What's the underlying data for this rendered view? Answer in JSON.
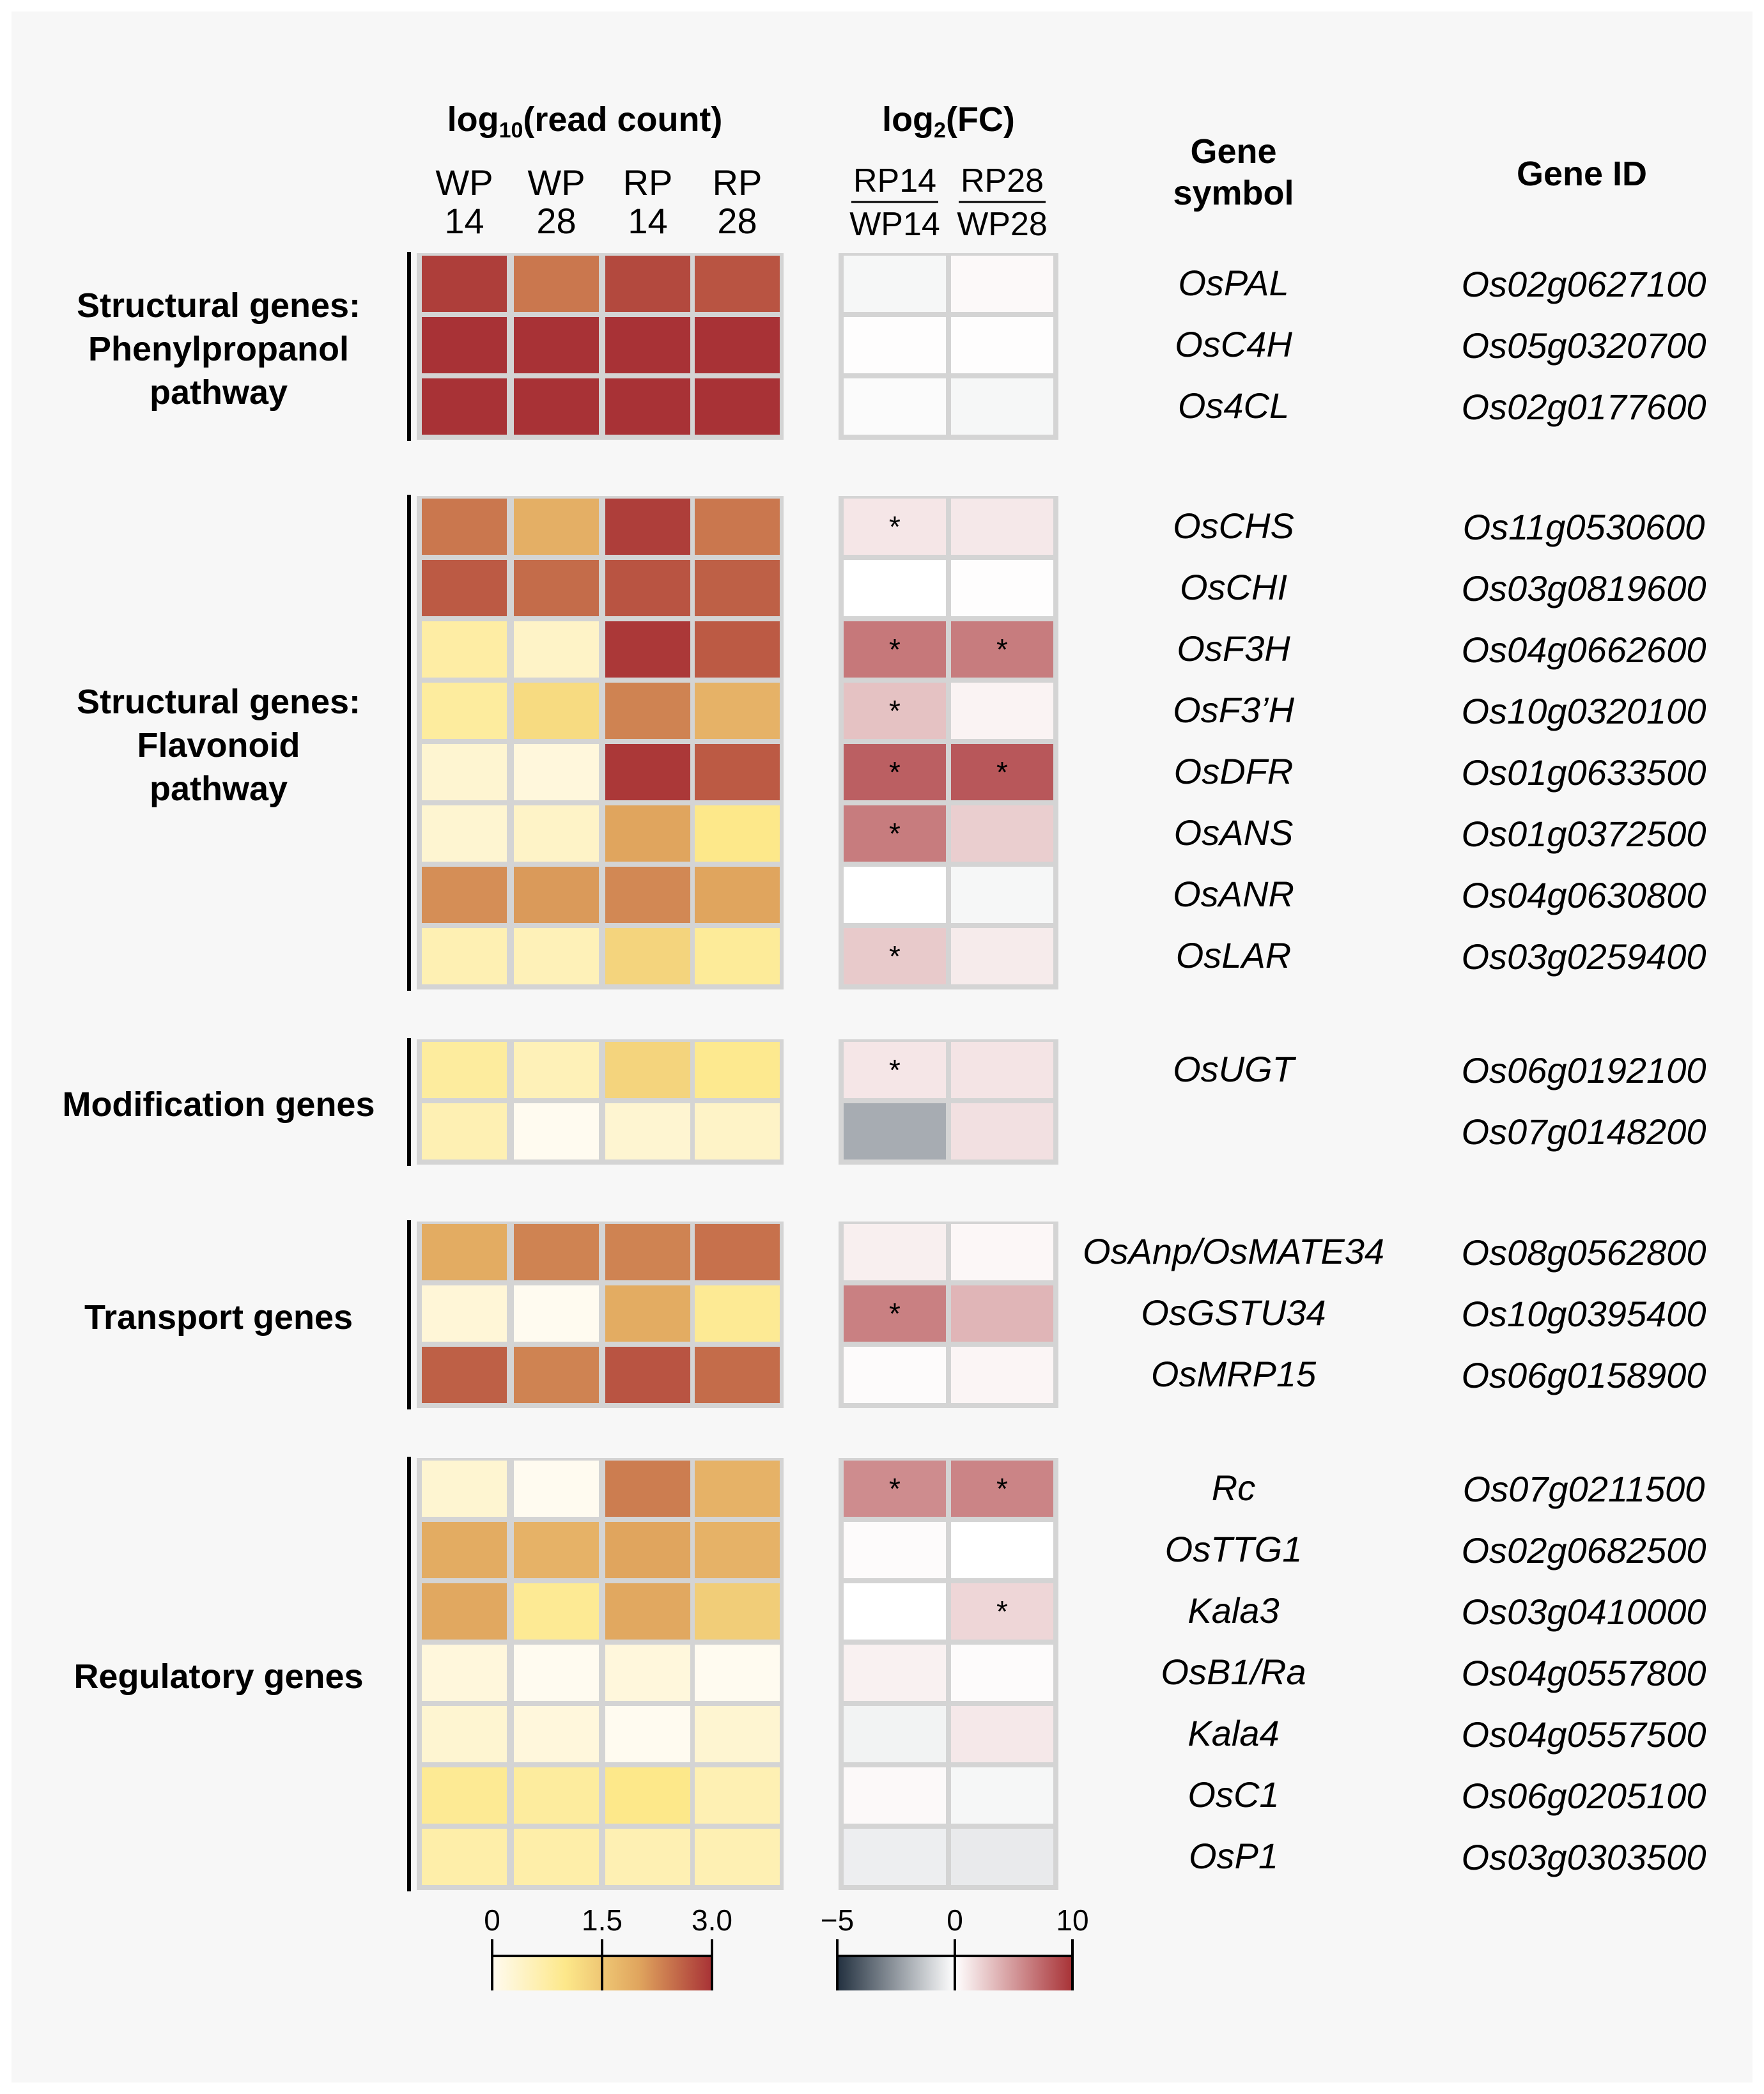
{
  "chart_data": {
    "type": "heatmap",
    "panels": [
      {
        "title_main": "log",
        "title_sub": "10",
        "title_rest": "(read count)",
        "columns": [
          {
            "line1": "WP",
            "line2": "14"
          },
          {
            "line1": "WP",
            "line2": "28"
          },
          {
            "line1": "RP",
            "line2": "14"
          },
          {
            "line1": "RP",
            "line2": "28"
          }
        ],
        "scale": {
          "min": 0,
          "max": 3.0,
          "colors": [
            "#fffbf0",
            "#fde88a",
            "#e0a55e",
            "#a83236"
          ],
          "ticks": [
            "0",
            "1.5",
            "3.0"
          ]
        }
      },
      {
        "title_main": "log",
        "title_sub": "2",
        "title_rest": "(FC)",
        "columns": [
          {
            "num": "RP14",
            "den": "WP14"
          },
          {
            "num": "RP28",
            "den": "WP28"
          }
        ],
        "scale": {
          "min": -5,
          "max": 10,
          "colors": [
            "#22303f",
            "#ffffff",
            "#a83236"
          ],
          "ticks": [
            "−5",
            "0",
            "10"
          ]
        }
      }
    ],
    "header_gene_symbol": [
      "Gene",
      "symbol"
    ],
    "header_gene_id": "Gene ID",
    "groups": [
      {
        "label": [
          "Structural genes:",
          "Phenylpropanol",
          "pathway"
        ],
        "rows": [
          {
            "symbol": "OsPAL",
            "id": "Os02g0627100",
            "read": [
              2.9,
              2.4,
              2.8,
              2.7
            ],
            "fc": [
              -0.2,
              0.3
            ],
            "sig": [
              false,
              false
            ]
          },
          {
            "symbol": "OsC4H",
            "id": "Os05g0320700",
            "read": [
              3.0,
              3.0,
              3.0,
              3.0
            ],
            "fc": [
              0.1,
              0.1
            ],
            "sig": [
              false,
              false
            ]
          },
          {
            "symbol": "Os4CL",
            "id": "Os02g0177600",
            "read": [
              3.0,
              3.0,
              3.0,
              3.0
            ],
            "fc": [
              -0.1,
              -0.2
            ],
            "sig": [
              false,
              false
            ]
          }
        ]
      },
      {
        "label": [
          "Structural genes:",
          "Flavonoid",
          "pathway"
        ],
        "rows": [
          {
            "symbol": "OsCHS",
            "id": "Os11g0530600",
            "read": [
              2.4,
              1.85,
              2.9,
              2.4
            ],
            "fc": [
              1.2,
              1.1
            ],
            "sig": [
              true,
              false
            ]
          },
          {
            "symbol": "OsCHI",
            "id": "Os03g0819600",
            "read": [
              2.65,
              2.5,
              2.7,
              2.6
            ],
            "fc": [
              0.0,
              0.1
            ],
            "sig": [
              false,
              false
            ]
          },
          {
            "symbol": "OsF3H",
            "id": "Os04g0662600",
            "read": [
              0.75,
              0.4,
              2.95,
              2.65
            ],
            "fc": [
              6.6,
              6.4
            ],
            "sig": [
              true,
              true
            ]
          },
          {
            "symbol": "OsF3’H",
            "id": "Os10g0320100",
            "read": [
              0.8,
              1.2,
              2.3,
              1.8
            ],
            "fc": [
              3.0,
              0.6
            ],
            "sig": [
              true,
              false
            ]
          },
          {
            "symbol": "OsDFR",
            "id": "Os01g0633500",
            "read": [
              0.3,
              0.2,
              2.95,
              2.65
            ],
            "fc": [
              7.8,
              8.2
            ],
            "sig": [
              true,
              true
            ]
          },
          {
            "symbol": "OsANS",
            "id": "Os01g0372500",
            "read": [
              0.3,
              0.4,
              2.0,
              1.0
            ],
            "fc": [
              6.4,
              2.4
            ],
            "sig": [
              true,
              false
            ]
          },
          {
            "symbol": "OsANR",
            "id": "Os04g0630800",
            "read": [
              2.2,
              2.1,
              2.25,
              2.0
            ],
            "fc": [
              0.0,
              -0.2
            ],
            "sig": [
              false,
              false
            ]
          },
          {
            "symbol": "OsLAR",
            "id": "Os03g0259400",
            "read": [
              0.6,
              0.55,
              1.3,
              0.85
            ],
            "fc": [
              2.6,
              1.0
            ],
            "sig": [
              true,
              false
            ]
          }
        ]
      },
      {
        "label": [
          "Modification genes"
        ],
        "rows": [
          {
            "symbol": "OsUGT",
            "id": "Os06g0192100",
            "read": [
              0.8,
              0.55,
              1.3,
              0.95
            ],
            "fc": [
              1.2,
              1.3
            ],
            "sig": [
              true,
              false
            ]
          },
          {
            "symbol": "",
            "id": "Os07g0148200",
            "read": [
              0.6,
              0.0,
              0.3,
              0.4
            ],
            "fc": [
              -2.0,
              1.5
            ],
            "sig": [
              false,
              false
            ]
          }
        ]
      },
      {
        "label": [
          "Transport genes"
        ],
        "rows": [
          {
            "symbol": "OsAnp/OsMATE34",
            "id": "Os08g0562800",
            "read": [
              1.9,
              2.3,
              2.3,
              2.45
            ],
            "fc": [
              0.8,
              0.4
            ],
            "sig": [
              false,
              false
            ]
          },
          {
            "symbol": "OsGSTU34",
            "id": "Os10g0395400",
            "read": [
              0.25,
              0.0,
              1.9,
              0.9
            ],
            "fc": [
              6.2,
              3.6
            ],
            "sig": [
              true,
              false
            ]
          },
          {
            "symbol": "OsMRP15",
            "id": "Os06g0158900",
            "read": [
              2.6,
              2.3,
              2.7,
              2.5
            ],
            "fc": [
              0.2,
              0.5
            ],
            "sig": [
              false,
              false
            ]
          }
        ]
      },
      {
        "label": [
          "Regulatory genes"
        ],
        "rows": [
          {
            "symbol": "Rc",
            "id": "Os07g0211500",
            "read": [
              0.3,
              0.0,
              2.35,
              1.8
            ],
            "fc": [
              5.6,
              6.0
            ],
            "sig": [
              true,
              true
            ]
          },
          {
            "symbol": "OsTTG1",
            "id": "Os02g0682500",
            "read": [
              1.9,
              1.8,
              2.0,
              1.8
            ],
            "fc": [
              0.2,
              0.0
            ],
            "sig": [
              false,
              false
            ]
          },
          {
            "symbol": "Kala3",
            "id": "Os03g0410000",
            "read": [
              1.95,
              0.9,
              1.95,
              1.4
            ],
            "fc": [
              0.0,
              2.0
            ],
            "sig": [
              false,
              true
            ]
          },
          {
            "symbol": "OsB1/Ra",
            "id": "Os04g0557800",
            "read": [
              0.2,
              0.0,
              0.2,
              0.0
            ],
            "fc": [
              0.7,
              0.2
            ],
            "sig": [
              false,
              false
            ]
          },
          {
            "symbol": "Kala4",
            "id": "Os04g0557500",
            "read": [
              0.3,
              0.2,
              0.0,
              0.3
            ],
            "fc": [
              -0.3,
              1.1
            ],
            "sig": [
              false,
              false
            ]
          },
          {
            "symbol": "OsC1",
            "id": "Os06g0205100",
            "read": [
              0.9,
              0.8,
              1.0,
              0.6
            ],
            "fc": [
              0.3,
              -0.2
            ],
            "sig": [
              false,
              false
            ]
          },
          {
            "symbol": "OsP1",
            "id": "Os03g0303500",
            "read": [
              0.7,
              0.7,
              0.6,
              0.6
            ],
            "fc": [
              -0.4,
              -0.5
            ],
            "sig": [
              false,
              false
            ]
          }
        ]
      }
    ]
  }
}
